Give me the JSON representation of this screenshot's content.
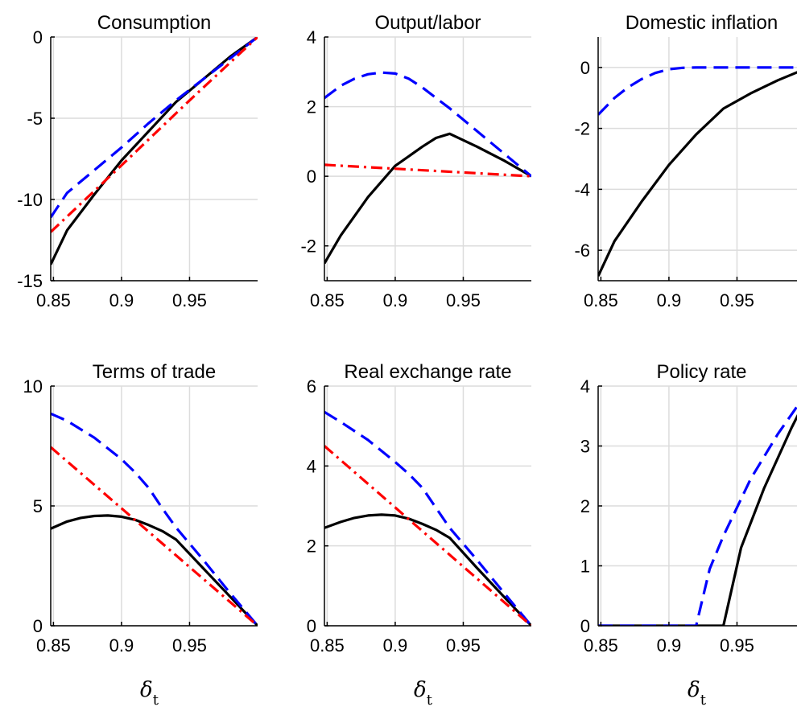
{
  "colors": {
    "black": "#000000",
    "blue": "#0000ff",
    "red": "#ff0000"
  },
  "chart_data": [
    {
      "type": "line",
      "title": "Consumption",
      "xlabel": "",
      "ylabel": "",
      "xlim": [
        0.848,
        1.0
      ],
      "ylim": [
        -15,
        0
      ],
      "xticks": [
        0.85,
        0.9,
        0.95
      ],
      "xtick_labels": [
        "0.85",
        "0.9",
        "0.95"
      ],
      "yticks": [
        -15,
        -10,
        -5,
        0
      ],
      "ytick_labels": [
        "-15",
        "-10",
        "-5",
        "0"
      ],
      "series": [
        {
          "color": "#000000",
          "style": "solid",
          "x": [
            0.848,
            0.86,
            0.88,
            0.9,
            0.92,
            0.94,
            0.96,
            0.98,
            1.0
          ],
          "y": [
            -14.0,
            -11.9,
            -9.7,
            -7.6,
            -5.8,
            -4.0,
            -2.6,
            -1.2,
            0.0
          ]
        },
        {
          "color": "#0000ff",
          "style": "dashed",
          "x": [
            0.848,
            0.86,
            0.88,
            0.9,
            0.92,
            0.94,
            0.96,
            0.98,
            1.0
          ],
          "y": [
            -11.1,
            -9.6,
            -8.2,
            -6.8,
            -5.3,
            -3.9,
            -2.6,
            -1.3,
            0.0
          ]
        },
        {
          "color": "#ff0000",
          "style": "dashdot",
          "x": [
            0.848,
            0.9,
            0.95,
            1.0
          ],
          "y": [
            -12.0,
            -7.9,
            -3.9,
            0.0
          ]
        }
      ]
    },
    {
      "type": "line",
      "title": "Output/labor",
      "xlabel": "",
      "ylabel": "",
      "xlim": [
        0.848,
        1.0
      ],
      "ylim": [
        -3,
        4
      ],
      "xticks": [
        0.85,
        0.9,
        0.95
      ],
      "xtick_labels": [
        "0.85",
        "0.9",
        "0.95"
      ],
      "yticks": [
        -2,
        0,
        2,
        4
      ],
      "ytick_labels": [
        "-2",
        "0",
        "2",
        "4"
      ],
      "series": [
        {
          "color": "#000000",
          "style": "solid",
          "x": [
            0.848,
            0.86,
            0.88,
            0.9,
            0.92,
            0.93,
            0.94,
            0.96,
            0.98,
            1.0
          ],
          "y": [
            -2.5,
            -1.7,
            -0.6,
            0.3,
            0.85,
            1.1,
            1.22,
            0.85,
            0.45,
            0.0
          ]
        },
        {
          "color": "#0000ff",
          "style": "dashed",
          "x": [
            0.848,
            0.86,
            0.87,
            0.88,
            0.89,
            0.9,
            0.91,
            0.92,
            0.93,
            0.94,
            0.96,
            0.98,
            1.0
          ],
          "y": [
            2.25,
            2.6,
            2.8,
            2.93,
            2.98,
            2.95,
            2.8,
            2.55,
            2.25,
            1.95,
            1.3,
            0.65,
            0.0
          ]
        },
        {
          "color": "#ff0000",
          "style": "dashdot",
          "x": [
            0.848,
            1.0
          ],
          "y": [
            0.33,
            0.0
          ]
        }
      ]
    },
    {
      "type": "line",
      "title": "Domestic inflation",
      "xlabel": "",
      "ylabel": "",
      "xlim": [
        0.848,
        1.0
      ],
      "ylim": [
        -7,
        1
      ],
      "xticks": [
        0.85,
        0.9,
        0.95
      ],
      "xtick_labels": [
        "0.85",
        "0.9",
        "0.95"
      ],
      "yticks": [
        -6,
        -4,
        -2,
        0
      ],
      "ytick_labels": [
        "-6",
        "-4",
        "-2",
        "0"
      ],
      "series": [
        {
          "color": "#000000",
          "style": "solid",
          "x": [
            0.848,
            0.86,
            0.88,
            0.9,
            0.92,
            0.94,
            0.96,
            0.98,
            1.0
          ],
          "y": [
            -6.85,
            -5.7,
            -4.4,
            -3.2,
            -2.2,
            -1.35,
            -0.85,
            -0.42,
            -0.05
          ]
        },
        {
          "color": "#0000ff",
          "style": "dashed",
          "x": [
            0.848,
            0.86,
            0.87,
            0.88,
            0.89,
            0.9,
            0.91,
            0.92,
            0.95,
            1.0
          ],
          "y": [
            -1.55,
            -1.0,
            -0.65,
            -0.38,
            -0.18,
            -0.06,
            -0.01,
            0.0,
            0.0,
            0.0
          ]
        }
      ]
    },
    {
      "type": "line",
      "title": "Terms of trade",
      "xlabel": "δt",
      "ylabel": "",
      "xlim": [
        0.848,
        1.0
      ],
      "ylim": [
        0,
        10
      ],
      "xticks": [
        0.85,
        0.9,
        0.95
      ],
      "xtick_labels": [
        "0.85",
        "0.9",
        "0.95"
      ],
      "yticks": [
        0,
        5,
        10
      ],
      "ytick_labels": [
        "0",
        "5",
        "10"
      ],
      "series": [
        {
          "color": "#000000",
          "style": "solid",
          "x": [
            0.848,
            0.86,
            0.87,
            0.88,
            0.89,
            0.9,
            0.91,
            0.92,
            0.93,
            0.94,
            0.96,
            0.98,
            1.0
          ],
          "y": [
            4.05,
            4.35,
            4.5,
            4.58,
            4.6,
            4.55,
            4.42,
            4.2,
            3.95,
            3.6,
            2.4,
            1.2,
            0.0
          ]
        },
        {
          "color": "#0000ff",
          "style": "dashed",
          "x": [
            0.848,
            0.86,
            0.88,
            0.9,
            0.91,
            0.92,
            0.93,
            0.94,
            0.96,
            0.98,
            1.0
          ],
          "y": [
            8.85,
            8.55,
            7.85,
            6.95,
            6.4,
            5.75,
            4.9,
            4.1,
            2.75,
            1.35,
            0.0
          ]
        },
        {
          "color": "#ff0000",
          "style": "dashdot",
          "x": [
            0.848,
            1.0
          ],
          "y": [
            7.45,
            0.0
          ]
        }
      ]
    },
    {
      "type": "line",
      "title": "Real exchange rate",
      "xlabel": "δt",
      "ylabel": "",
      "xlim": [
        0.848,
        1.0
      ],
      "ylim": [
        0,
        6
      ],
      "xticks": [
        0.85,
        0.9,
        0.95
      ],
      "xtick_labels": [
        "0.85",
        "0.9",
        "0.95"
      ],
      "yticks": [
        0,
        2,
        4,
        6
      ],
      "ytick_labels": [
        "0",
        "2",
        "4",
        "6"
      ],
      "series": [
        {
          "color": "#000000",
          "style": "solid",
          "x": [
            0.848,
            0.86,
            0.87,
            0.88,
            0.89,
            0.9,
            0.91,
            0.92,
            0.93,
            0.94,
            0.96,
            0.98,
            1.0
          ],
          "y": [
            2.45,
            2.6,
            2.7,
            2.76,
            2.78,
            2.76,
            2.68,
            2.55,
            2.4,
            2.2,
            1.45,
            0.72,
            0.0
          ]
        },
        {
          "color": "#0000ff",
          "style": "dashed",
          "x": [
            0.848,
            0.86,
            0.88,
            0.9,
            0.91,
            0.92,
            0.93,
            0.94,
            0.96,
            0.98,
            1.0
          ],
          "y": [
            5.35,
            5.1,
            4.65,
            4.1,
            3.8,
            3.45,
            2.95,
            2.45,
            1.65,
            0.82,
            0.0
          ]
        },
        {
          "color": "#ff0000",
          "style": "dashdot",
          "x": [
            0.848,
            1.0
          ],
          "y": [
            4.5,
            0.0
          ]
        }
      ]
    },
    {
      "type": "line",
      "title": "Policy rate",
      "xlabel": "δt",
      "ylabel": "",
      "xlim": [
        0.848,
        1.0
      ],
      "ylim": [
        0,
        4
      ],
      "xticks": [
        0.85,
        0.9,
        0.95
      ],
      "xtick_labels": [
        "0.85",
        "0.9",
        "0.95"
      ],
      "yticks": [
        0,
        1,
        2,
        3,
        4
      ],
      "ytick_labels": [
        "0",
        "1",
        "2",
        "3",
        "4"
      ],
      "series": [
        {
          "color": "#000000",
          "style": "solid",
          "x": [
            0.848,
            0.9,
            0.94,
            0.953,
            0.97,
            0.99,
            1.0
          ],
          "y": [
            0.0,
            0.0,
            0.0,
            1.3,
            2.3,
            3.3,
            3.75
          ]
        },
        {
          "color": "#0000ff",
          "style": "dashed",
          "x": [
            0.848,
            0.9,
            0.92,
            0.93,
            0.94,
            0.96,
            0.98,
            1.0
          ],
          "y": [
            0.0,
            0.0,
            0.0,
            0.95,
            1.5,
            2.45,
            3.2,
            3.85
          ]
        }
      ]
    }
  ]
}
